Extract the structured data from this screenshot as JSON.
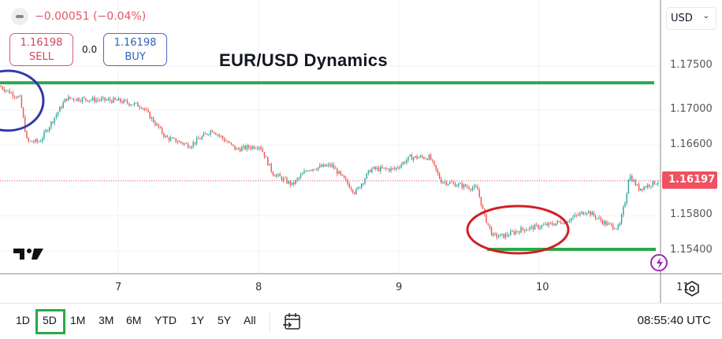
{
  "header": {
    "change": "−0.00051 (−0.04%)",
    "sell_price": "1.16198",
    "sell_label": "SELL",
    "spread": "0.0",
    "buy_price": "1.16198",
    "buy_label": "BUY"
  },
  "annotation_title": "EUR/USD Dynamics",
  "currency_select": "USD",
  "price_axis": [
    "1.17500",
    "1.17000",
    "1.16600",
    "1.15800",
    "1.15400"
  ],
  "current_price": "1.16197",
  "time_axis": [
    "7",
    "8",
    "9",
    "10",
    "11"
  ],
  "ranges": [
    "1D",
    "5D",
    "1M",
    "3M",
    "6M",
    "YTD",
    "1Y",
    "5Y",
    "All"
  ],
  "selected_range": "5D",
  "clock": "08:55:40 UTC",
  "colors": {
    "up": "#26a69a",
    "down": "#ef5350",
    "level_line": "#2aa84a",
    "circle_left": "#2f3aa8",
    "circle_right": "#d21f24",
    "current_badge": "#f0505f"
  },
  "chart_data": {
    "type": "line",
    "x": [
      6.16,
      6.3,
      6.35,
      6.44,
      6.63,
      7.0,
      7.17,
      7.34,
      7.51,
      7.67,
      7.84,
      8.01,
      8.1,
      8.24,
      8.35,
      8.52,
      8.69,
      8.8,
      8.97,
      9.08,
      9.22,
      9.3,
      9.42,
      9.56,
      9.61,
      9.67,
      9.75,
      9.87,
      10.09,
      10.2,
      10.34,
      10.48,
      10.57,
      10.62,
      10.64,
      10.71,
      10.87
    ],
    "y": [
      1.17268,
      1.17134,
      1.16643,
      1.16643,
      1.17134,
      1.17107,
      1.17045,
      1.16688,
      1.16598,
      1.16777,
      1.16554,
      1.16598,
      1.16286,
      1.16152,
      1.1633,
      1.16375,
      1.16063,
      1.1633,
      1.1633,
      1.16464,
      1.16464,
      1.16196,
      1.16152,
      1.16107,
      1.15795,
      1.15571,
      1.15571,
      1.15643,
      1.15705,
      1.1575,
      1.15857,
      1.15705,
      1.15661,
      1.16018,
      1.16268,
      1.16107,
      1.16205
    ],
    "levels": [
      1.1731,
      1.1542
    ],
    "ylim": [
      1.1525,
      1.1782
    ],
    "xlim": [
      6.16,
      10.88
    ],
    "grid": true
  }
}
